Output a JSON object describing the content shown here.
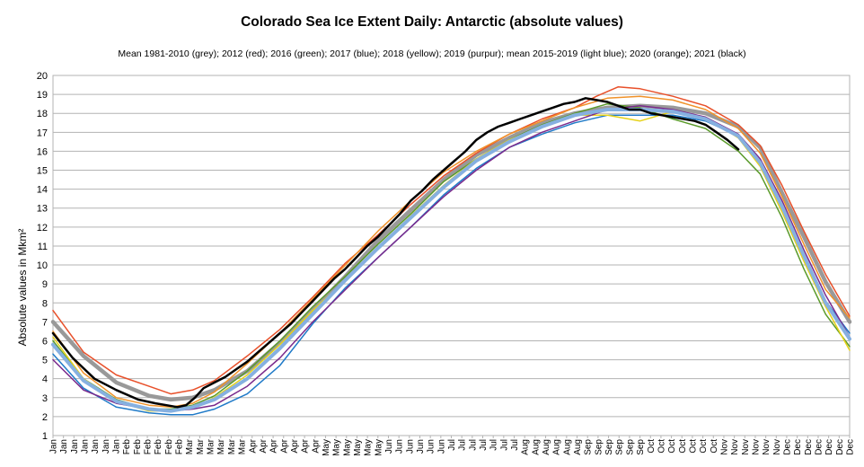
{
  "chart_data": {
    "type": "line",
    "title": "Colorado Sea Ice Extent Daily: Antarctic (absolute values)",
    "subtitle": "Mean 1981-2010 (grey); 2012 (red); 2016 (green); 2017 (blue); 2018 (yellow); 2019 (purpur); mean 2015-2019 (light blue); 2020 (orange); 2021 (black)",
    "xlabel": "",
    "ylabel": "Absolute values in Mkm²",
    "ylim": [
      1,
      20
    ],
    "yticks": [
      1,
      2,
      3,
      4,
      5,
      6,
      7,
      8,
      9,
      10,
      11,
      12,
      13,
      14,
      15,
      16,
      17,
      18,
      19,
      20
    ],
    "xlim": [
      1,
      366
    ],
    "grid": true,
    "x_tick_labels": [
      "Jan",
      "Jan",
      "Jan",
      "Jan",
      "Jan",
      "Jan",
      "Jan",
      "Feb",
      "Feb",
      "Feb",
      "Feb",
      "Feb",
      "Feb",
      "Mar",
      "Mar",
      "Mar",
      "Mar",
      "Mar",
      "Mar",
      "Apr",
      "Apr",
      "Apr",
      "Apr",
      "Apr",
      "Apr",
      "Apr",
      "May",
      "May",
      "May",
      "May",
      "May",
      "May",
      "Jun",
      "Jun",
      "Jun",
      "Jun",
      "Jun",
      "Jun",
      "Jul",
      "Jul",
      "Jul",
      "Jul",
      "Jul",
      "Jul",
      "Jul",
      "Aug",
      "Aug",
      "Aug",
      "Aug",
      "Aug",
      "Aug",
      "Sep",
      "Sep",
      "Sep",
      "Sep",
      "Sep",
      "Sep",
      "Oct",
      "Oct",
      "Oct",
      "Oct",
      "Oct",
      "Oct",
      "Oct",
      "Nov",
      "Nov",
      "Nov",
      "Nov",
      "Nov",
      "Nov",
      "Dec",
      "Dec",
      "Dec",
      "Dec",
      "Dec",
      "Dec",
      "Dec"
    ],
    "series": [
      {
        "name": "Mean 1981-2010",
        "color": "#999999",
        "width": 4.5,
        "x": [
          1,
          15,
          30,
          45,
          55,
          65,
          75,
          90,
          105,
          120,
          135,
          150,
          165,
          180,
          195,
          210,
          225,
          240,
          255,
          270,
          285,
          300,
          315,
          325,
          335,
          345,
          355,
          366
        ],
        "y": [
          7.0,
          5.2,
          3.8,
          3.1,
          2.9,
          3.0,
          3.4,
          4.4,
          5.9,
          7.6,
          9.4,
          11.3,
          12.9,
          14.5,
          15.8,
          16.7,
          17.5,
          18.0,
          18.3,
          18.4,
          18.3,
          18.0,
          17.3,
          16.2,
          13.8,
          11.5,
          9.1,
          7.0
        ]
      },
      {
        "name": "2012",
        "color": "#e8502a",
        "width": 1.5,
        "x": [
          1,
          15,
          30,
          45,
          55,
          65,
          75,
          90,
          105,
          120,
          135,
          150,
          165,
          180,
          195,
          210,
          225,
          240,
          250,
          260,
          270,
          285,
          300,
          315,
          325,
          335,
          345,
          355,
          366
        ],
        "y": [
          7.6,
          5.4,
          4.2,
          3.6,
          3.2,
          3.4,
          3.9,
          5.2,
          6.6,
          8.3,
          10.1,
          11.6,
          13.2,
          14.7,
          15.9,
          16.9,
          17.7,
          18.3,
          18.9,
          19.4,
          19.3,
          18.9,
          18.4,
          17.4,
          16.3,
          14.2,
          11.8,
          9.5,
          7.3
        ]
      },
      {
        "name": "2016",
        "color": "#5a9a2a",
        "width": 1.5,
        "x": [
          1,
          15,
          30,
          45,
          55,
          65,
          75,
          90,
          105,
          120,
          135,
          150,
          165,
          180,
          195,
          210,
          225,
          240,
          255,
          270,
          285,
          300,
          315,
          325,
          335,
          345,
          355,
          366
        ],
        "y": [
          6.0,
          4.0,
          2.9,
          2.4,
          2.4,
          2.6,
          3.1,
          4.4,
          6.0,
          7.8,
          9.4,
          11.1,
          12.7,
          14.4,
          15.6,
          16.6,
          17.4,
          18.0,
          18.5,
          18.3,
          17.7,
          17.2,
          16.0,
          14.8,
          12.5,
          9.8,
          7.4,
          5.7
        ]
      },
      {
        "name": "2017",
        "color": "#1f7ac8",
        "width": 1.5,
        "x": [
          1,
          15,
          30,
          45,
          55,
          65,
          75,
          90,
          105,
          120,
          135,
          150,
          165,
          180,
          195,
          210,
          225,
          240,
          255,
          270,
          285,
          300,
          315,
          325,
          335,
          345,
          355,
          366
        ],
        "y": [
          5.3,
          3.5,
          2.5,
          2.2,
          2.1,
          2.1,
          2.4,
          3.2,
          4.7,
          6.9,
          8.8,
          10.4,
          12.0,
          13.7,
          15.1,
          16.2,
          16.9,
          17.5,
          17.9,
          17.9,
          17.9,
          17.6,
          16.8,
          15.5,
          13.1,
          10.5,
          8.1,
          6.4
        ]
      },
      {
        "name": "2018",
        "color": "#e6d21a",
        "width": 1.5,
        "x": [
          1,
          15,
          30,
          45,
          55,
          65,
          75,
          90,
          105,
          120,
          135,
          150,
          165,
          180,
          195,
          210,
          225,
          240,
          255,
          270,
          285,
          300,
          315,
          325,
          335,
          345,
          355,
          366
        ],
        "y": [
          6.2,
          4.0,
          2.8,
          2.3,
          2.3,
          2.5,
          3.0,
          4.2,
          5.8,
          7.6,
          9.2,
          10.9,
          12.6,
          14.2,
          15.6,
          16.6,
          17.3,
          17.9,
          17.9,
          17.6,
          18.1,
          17.8,
          16.7,
          15.2,
          12.8,
          10.2,
          7.8,
          5.5
        ]
      },
      {
        "name": "2019",
        "color": "#7a2a8c",
        "width": 1.5,
        "x": [
          1,
          15,
          30,
          45,
          55,
          65,
          75,
          90,
          105,
          120,
          135,
          150,
          165,
          180,
          195,
          210,
          225,
          240,
          255,
          270,
          285,
          300,
          315,
          325,
          335,
          345,
          355,
          366
        ],
        "y": [
          5.0,
          3.4,
          2.7,
          2.4,
          2.3,
          2.4,
          2.6,
          3.6,
          5.1,
          7.0,
          8.7,
          10.4,
          12.0,
          13.6,
          15.0,
          16.2,
          17.0,
          17.6,
          18.2,
          18.4,
          18.2,
          17.8,
          16.9,
          15.6,
          13.4,
          10.8,
          8.4,
          6.2
        ]
      },
      {
        "name": "mean 2015-2019",
        "color": "#86b0e0",
        "width": 4,
        "x": [
          1,
          15,
          30,
          45,
          55,
          65,
          75,
          90,
          105,
          120,
          135,
          150,
          165,
          180,
          195,
          210,
          225,
          240,
          255,
          270,
          285,
          300,
          315,
          325,
          335,
          345,
          355,
          366
        ],
        "y": [
          5.8,
          3.9,
          2.8,
          2.4,
          2.3,
          2.5,
          2.9,
          4.0,
          5.6,
          7.4,
          9.2,
          10.9,
          12.5,
          14.1,
          15.5,
          16.5,
          17.3,
          17.9,
          18.2,
          18.2,
          18.1,
          17.7,
          16.8,
          15.4,
          13.1,
          10.5,
          8.0,
          6.1
        ]
      },
      {
        "name": "2020",
        "color": "#f0922a",
        "width": 1.5,
        "x": [
          1,
          15,
          30,
          45,
          55,
          65,
          75,
          90,
          105,
          120,
          135,
          150,
          165,
          180,
          195,
          210,
          225,
          240,
          255,
          270,
          285,
          300,
          315,
          325,
          335,
          345,
          355,
          366
        ],
        "y": [
          6.5,
          4.3,
          3.0,
          2.6,
          2.5,
          2.7,
          3.3,
          4.8,
          6.4,
          8.2,
          10.0,
          11.8,
          13.4,
          14.9,
          16.0,
          16.9,
          17.6,
          18.3,
          18.8,
          18.9,
          18.7,
          18.2,
          17.2,
          15.9,
          13.6,
          11.1,
          8.7,
          7.2
        ]
      },
      {
        "name": "2021",
        "color": "#000000",
        "width": 2.5,
        "x": [
          1,
          10,
          20,
          30,
          40,
          48,
          53,
          58,
          62,
          66,
          70,
          75,
          80,
          85,
          90,
          95,
          100,
          105,
          110,
          115,
          120,
          125,
          130,
          135,
          140,
          145,
          150,
          155,
          160,
          165,
          170,
          175,
          180,
          185,
          190,
          195,
          200,
          205,
          210,
          215,
          220,
          225,
          230,
          235,
          240,
          245,
          250,
          255,
          260,
          265,
          270,
          275,
          280,
          285,
          290,
          295,
          300,
          305,
          310,
          315
        ],
        "y": [
          6.4,
          5.1,
          4.0,
          3.4,
          2.9,
          2.7,
          2.6,
          2.5,
          2.6,
          3.0,
          3.5,
          3.8,
          4.1,
          4.5,
          4.9,
          5.4,
          5.9,
          6.4,
          6.9,
          7.5,
          8.1,
          8.7,
          9.3,
          9.8,
          10.4,
          11.0,
          11.5,
          12.1,
          12.7,
          13.4,
          13.9,
          14.5,
          15.0,
          15.5,
          16.0,
          16.6,
          17.0,
          17.3,
          17.5,
          17.7,
          17.9,
          18.1,
          18.3,
          18.5,
          18.6,
          18.8,
          18.7,
          18.6,
          18.4,
          18.2,
          18.2,
          18.0,
          17.9,
          17.8,
          17.7,
          17.6,
          17.4,
          17.0,
          16.6,
          16.1
        ]
      }
    ]
  }
}
